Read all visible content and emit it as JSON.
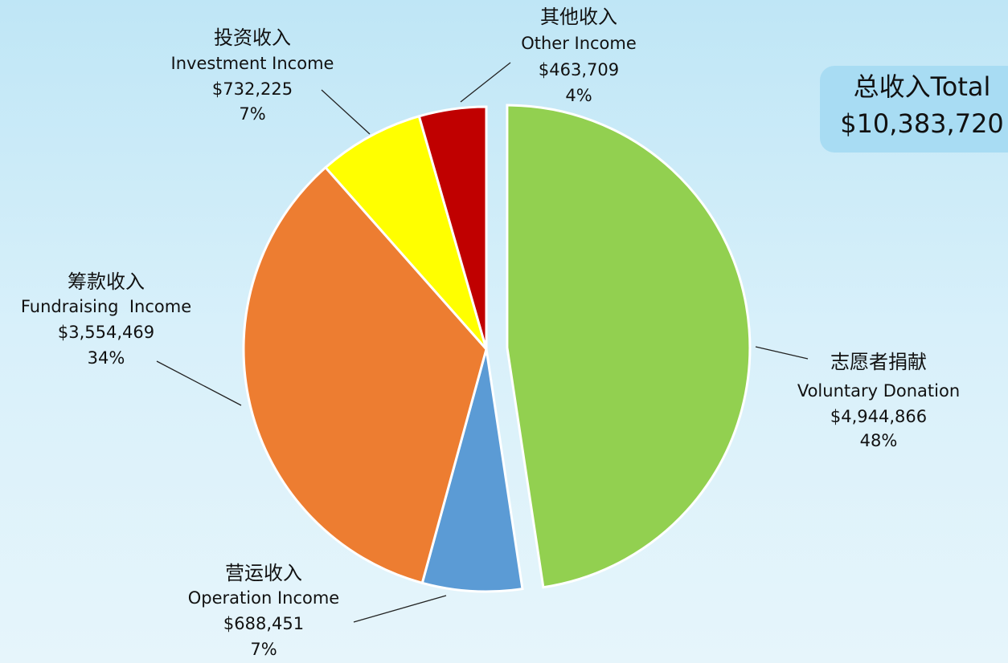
{
  "chart_data": {
    "type": "pie",
    "categories": [
      "Voluntary Donation",
      "Operation Income",
      "Fundraising  Income",
      "Investment Income",
      "Other Income"
    ],
    "categories_zh": [
      "志愿者捐献",
      "营运收入",
      "筹款收入",
      "投资收入",
      "其他收入"
    ],
    "values": [
      4944866,
      688451,
      3554469,
      732225,
      463709
    ],
    "value_labels": [
      "$4,944,866",
      "$688,451",
      "$3,554,469",
      "$732,225",
      "$463,709"
    ],
    "percent_labels": [
      "48%",
      "7%",
      "34%",
      "7%",
      "4%"
    ],
    "colors": [
      "#92d050",
      "#5b9bd5",
      "#ed7d31",
      "#ffff00",
      "#c00000"
    ],
    "total_title": "总收入Total",
    "total": "$10,383,720"
  }
}
